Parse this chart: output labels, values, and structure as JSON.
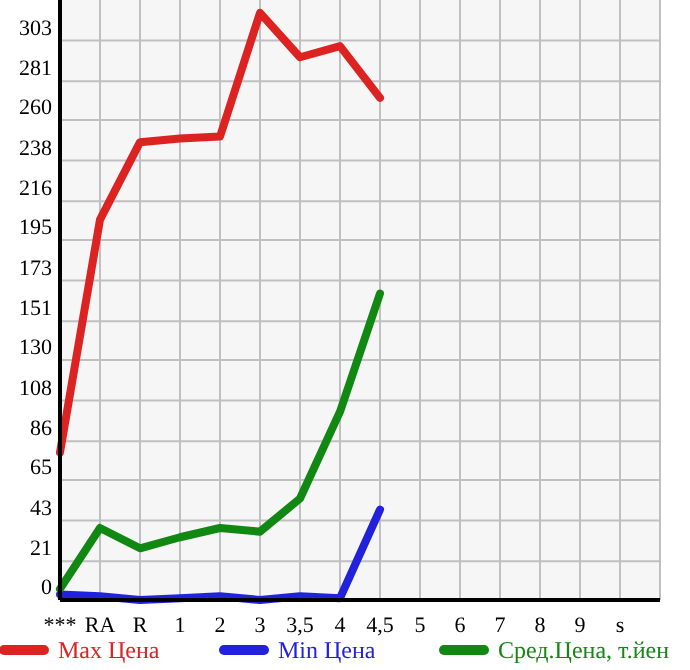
{
  "chart_data": {
    "type": "line",
    "categories": [
      "***",
      "RA",
      "R",
      "1",
      "2",
      "3",
      "3,5",
      "4",
      "4,5",
      "5",
      "6",
      "7",
      "8",
      "9",
      "s"
    ],
    "series": [
      {
        "name": "Max Цена",
        "color": "#dd2222",
        "values": [
          80,
          206,
          248,
          250,
          251,
          318,
          294,
          300,
          272,
          null,
          null,
          null,
          null,
          null,
          null
        ]
      },
      {
        "name": "Min Цена",
        "color": "#2222dd",
        "values": [
          3,
          2,
          0,
          1,
          2,
          0,
          2,
          1,
          49,
          null,
          null,
          null,
          null,
          null,
          null
        ]
      },
      {
        "name": "Сред.Цена, т.йен",
        "color": "#118811",
        "values": [
          6,
          39,
          28,
          34,
          39,
          37,
          55,
          102,
          166,
          null,
          null,
          null,
          null,
          null,
          null
        ]
      }
    ],
    "ylim": [
      0,
      325
    ],
    "yticks": [
      0,
      21,
      43,
      65,
      86,
      108,
      130,
      151,
      173,
      195,
      216,
      238,
      260,
      281,
      303
    ],
    "grid": true,
    "legend": "bottom",
    "line_style": "solid"
  }
}
